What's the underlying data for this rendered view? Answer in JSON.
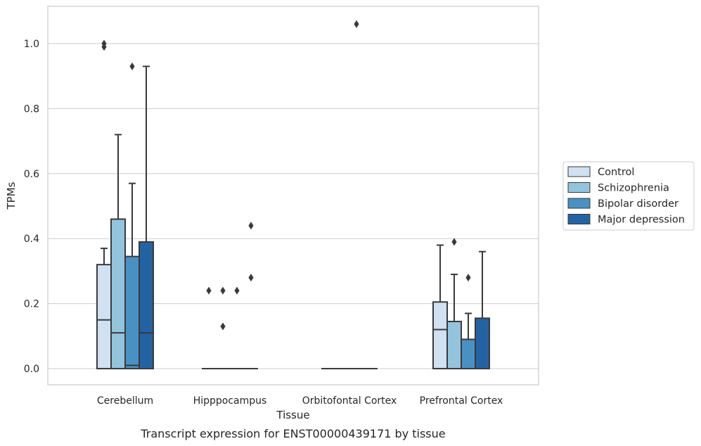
{
  "chart_data": {
    "type": "box",
    "caption": "Transcript expression for ENST00000439171 by tissue",
    "xlabel": "Tissue",
    "ylabel": "TPMs",
    "ylim": [
      -0.05,
      1.115
    ],
    "yticks": [
      0.0,
      0.2,
      0.4,
      0.6,
      0.8,
      1.0
    ],
    "ytick_labels": [
      "0.0",
      "0.2",
      "0.4",
      "0.6",
      "0.8",
      "1.0"
    ],
    "grid": "horizontal",
    "legend_position": "right",
    "categories": [
      "Cerebellum",
      "Hipppocampus",
      "Orbitofontal Cortex",
      "Prefrontal Cortex"
    ],
    "series": [
      {
        "name": "Control",
        "color": "#d0e1f1",
        "boxes": [
          {
            "q1": 0.0,
            "median": 0.15,
            "q3": 0.32,
            "whisker_low": 0.0,
            "whisker_high": 0.37,
            "outliers": [
              0.99,
              1.0
            ]
          },
          {
            "q1": 0.0,
            "median": 0.0,
            "q3": 0.0,
            "whisker_low": 0.0,
            "whisker_high": 0.0,
            "outliers": [
              0.24
            ]
          },
          {
            "q1": 0.0,
            "median": 0.0,
            "q3": 0.0,
            "whisker_low": 0.0,
            "whisker_high": 0.0,
            "outliers": []
          },
          {
            "q1": 0.0,
            "median": 0.12,
            "q3": 0.205,
            "whisker_low": 0.0,
            "whisker_high": 0.38,
            "outliers": []
          }
        ]
      },
      {
        "name": "Schizophrenia",
        "color": "#93c4de",
        "boxes": [
          {
            "q1": 0.0,
            "median": 0.11,
            "q3": 0.46,
            "whisker_low": 0.0,
            "whisker_high": 0.72,
            "outliers": []
          },
          {
            "q1": 0.0,
            "median": 0.0,
            "q3": 0.0,
            "whisker_low": 0.0,
            "whisker_high": 0.0,
            "outliers": [
              0.13,
              0.24
            ]
          },
          {
            "q1": 0.0,
            "median": 0.0,
            "q3": 0.0,
            "whisker_low": 0.0,
            "whisker_high": 0.0,
            "outliers": []
          },
          {
            "q1": 0.0,
            "median": 0.0,
            "q3": 0.145,
            "whisker_low": 0.0,
            "whisker_high": 0.29,
            "outliers": [
              0.39
            ]
          }
        ]
      },
      {
        "name": "Bipolar disorder",
        "color": "#4a91c3",
        "boxes": [
          {
            "q1": 0.0,
            "median": 0.01,
            "q3": 0.345,
            "whisker_low": 0.0,
            "whisker_high": 0.57,
            "outliers": [
              0.93
            ]
          },
          {
            "q1": 0.0,
            "median": 0.0,
            "q3": 0.0,
            "whisker_low": 0.0,
            "whisker_high": 0.0,
            "outliers": [
              0.24
            ]
          },
          {
            "q1": 0.0,
            "median": 0.0,
            "q3": 0.0,
            "whisker_low": 0.0,
            "whisker_high": 0.0,
            "outliers": [
              1.06
            ]
          },
          {
            "q1": 0.0,
            "median": 0.0,
            "q3": 0.09,
            "whisker_low": 0.0,
            "whisker_high": 0.17,
            "outliers": [
              0.28
            ]
          }
        ]
      },
      {
        "name": "Major depression",
        "color": "#2463a3",
        "boxes": [
          {
            "q1": 0.0,
            "median": 0.11,
            "q3": 0.39,
            "whisker_low": 0.0,
            "whisker_high": 0.93,
            "outliers": []
          },
          {
            "q1": 0.0,
            "median": 0.0,
            "q3": 0.0,
            "whisker_low": 0.0,
            "whisker_high": 0.0,
            "outliers": [
              0.28,
              0.44
            ]
          },
          {
            "q1": 0.0,
            "median": 0.0,
            "q3": 0.0,
            "whisker_low": 0.0,
            "whisker_high": 0.0,
            "outliers": []
          },
          {
            "q1": 0.0,
            "median": 0.0,
            "q3": 0.155,
            "whisker_low": 0.0,
            "whisker_high": 0.36,
            "outliers": []
          }
        ]
      }
    ]
  }
}
